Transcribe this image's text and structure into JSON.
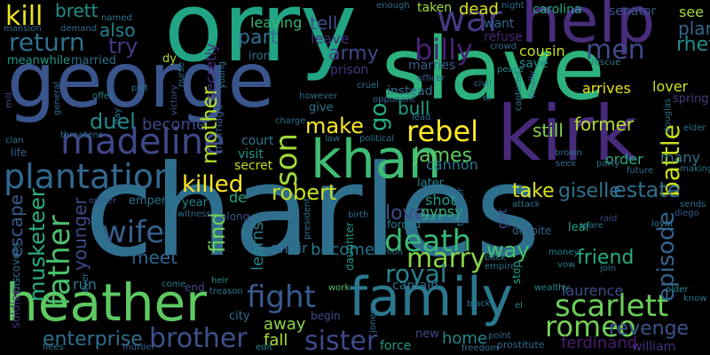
{
  "words": [
    {
      "text": "charles",
      "color": "#2f6f8e"
    },
    {
      "text": "orry",
      "color": "#21a585"
    },
    {
      "text": "george",
      "color": "#3a548c"
    },
    {
      "text": "slave",
      "color": "#2db27d"
    },
    {
      "text": "kirk",
      "color": "#472a7a"
    },
    {
      "text": "help",
      "color": "#472d7b"
    },
    {
      "text": "family",
      "color": "#2a788e"
    },
    {
      "text": "heather",
      "color": "#5ec962"
    },
    {
      "text": "khan",
      "color": "#3fbc73"
    },
    {
      "text": "madeline",
      "color": "#3f4788"
    },
    {
      "text": "plantation",
      "color": "#31688e"
    },
    {
      "text": "war",
      "color": "#443983"
    },
    {
      "text": "kill",
      "color": "#eae51a"
    },
    {
      "text": "return",
      "color": "#2c728e"
    },
    {
      "text": "father",
      "color": "#4ac16d"
    },
    {
      "text": "wife",
      "color": "#34608d"
    },
    {
      "text": "fight",
      "color": "#375a8c"
    },
    {
      "text": "rebel",
      "color": "#fde725"
    },
    {
      "text": "scarlett",
      "color": "#6ccd5a"
    },
    {
      "text": "romeo",
      "color": "#73d056"
    },
    {
      "text": "brother",
      "color": "#3b528b"
    },
    {
      "text": "death",
      "color": "#38b977"
    },
    {
      "text": "billy",
      "color": "#482173"
    },
    {
      "text": "men",
      "color": "#3e4989"
    },
    {
      "text": "sister",
      "color": "#3e4989"
    },
    {
      "text": "battle",
      "color": "#cae11f"
    },
    {
      "text": "son",
      "color": "#a0da39"
    },
    {
      "text": "episode",
      "color": "#33638d"
    },
    {
      "text": "musketeer",
      "color": "#28ae80"
    },
    {
      "text": "marry",
      "color": "#87d549"
    },
    {
      "text": "royal",
      "color": "#25848e"
    },
    {
      "text": "killed",
      "color": "#fde725"
    },
    {
      "text": "robert",
      "color": "#c8e020"
    },
    {
      "text": "make",
      "color": "#fde725"
    },
    {
      "text": "james",
      "color": "#5ec962"
    },
    {
      "text": "mother",
      "color": "#b5de2b"
    },
    {
      "text": "duel",
      "color": "#238a8d"
    },
    {
      "text": "estate",
      "color": "#2e6e8e"
    },
    {
      "text": "giselle",
      "color": "#2c738e"
    },
    {
      "text": "friend",
      "color": "#26ad81"
    },
    {
      "text": "army",
      "color": "#3e4a89"
    },
    {
      "text": "revenge",
      "color": "#39558c"
    },
    {
      "text": "enterprise",
      "color": "#2e6f8e"
    },
    {
      "text": "take",
      "color": "#dce319"
    },
    {
      "text": "rhett",
      "color": "#228d8d"
    },
    {
      "text": "plan",
      "color": "#32658e"
    },
    {
      "text": "love",
      "color": "#3d4d8a"
    },
    {
      "text": "way",
      "color": "#46c06f"
    },
    {
      "text": "find",
      "color": "#73d056"
    },
    {
      "text": "meet",
      "color": "#31678e"
    },
    {
      "text": "part",
      "color": "#2d718e"
    },
    {
      "text": "tell",
      "color": "#3d4e8a"
    },
    {
      "text": "also",
      "color": "#26828e"
    },
    {
      "text": "try",
      "color": "#443983"
    },
    {
      "text": "go",
      "color": "#25ab82"
    },
    {
      "text": "bull",
      "color": "#1fa188"
    },
    {
      "text": "still",
      "color": "#84d44b"
    },
    {
      "text": "former",
      "color": "#b5de2b"
    },
    {
      "text": "brett",
      "color": "#20928c"
    },
    {
      "text": "become",
      "color": "#3e4a89"
    },
    {
      "text": "becomes",
      "color": "#2b758e"
    },
    {
      "text": "younger",
      "color": "#3e4989"
    },
    {
      "text": "escape",
      "color": "#375b8d"
    },
    {
      "text": "leave",
      "color": "#472f7d"
    },
    {
      "text": "dead",
      "color": "#dde318"
    },
    {
      "text": "leaving",
      "color": "#35b779"
    },
    {
      "text": "secretly",
      "color": "#46337f"
    },
    {
      "text": "order",
      "color": "#25ab82"
    },
    {
      "text": "many",
      "color": "#2c728e"
    },
    {
      "text": "away",
      "color": "#8bd646"
    },
    {
      "text": "fall",
      "color": "#addc30"
    },
    {
      "text": "home",
      "color": "#24878e"
    },
    {
      "text": "laurence",
      "color": "#3d4e8a"
    },
    {
      "text": "ferdinand",
      "color": "#481b6d"
    },
    {
      "text": "william",
      "color": "#46307e"
    },
    {
      "text": "cannon",
      "color": "#2a778e"
    },
    {
      "text": "learns",
      "color": "#26828e"
    },
    {
      "text": "affair",
      "color": "#2c718e"
    },
    {
      "text": "gypsy",
      "color": "#32b67a"
    },
    {
      "text": "shot",
      "color": "#1f9e89"
    },
    {
      "text": "secret",
      "color": "#c2df23"
    },
    {
      "text": "captain",
      "color": "#2d708e"
    },
    {
      "text": "court",
      "color": "#2a768e"
    },
    {
      "text": "visit",
      "color": "#1f968b"
    },
    {
      "text": "run",
      "color": "#287c8e"
    },
    {
      "text": "arrives",
      "color": "#e5e419"
    },
    {
      "text": "lover",
      "color": "#d2e21b"
    },
    {
      "text": "see",
      "color": "#a2da37"
    },
    {
      "text": "senator",
      "color": "#3a548c"
    },
    {
      "text": "carolina",
      "color": "#22a884"
    },
    {
      "text": "want",
      "color": "#32658e"
    },
    {
      "text": "refuse",
      "color": "#482878"
    },
    {
      "text": "cousin",
      "color": "#c2df23"
    },
    {
      "text": "save",
      "color": "#23898e"
    },
    {
      "text": "taken",
      "color": "#a0da39"
    },
    {
      "text": "marries",
      "color": "#365c8d"
    },
    {
      "text": "prison",
      "color": "#46337f"
    },
    {
      "text": "instead",
      "color": "#2e6e8e"
    },
    {
      "text": "married",
      "color": "#2e6e8e"
    },
    {
      "text": "meanwhile",
      "color": "#1f9a8a"
    },
    {
      "text": "iron",
      "color": "#2c718e"
    },
    {
      "text": "give",
      "color": "#2b758e"
    },
    {
      "text": "later",
      "color": "#26828e"
    },
    {
      "text": "leaf",
      "color": "#22a785"
    },
    {
      "text": "spring",
      "color": "#433e85"
    },
    {
      "text": "soldier",
      "color": "#472d7b"
    },
    {
      "text": "discovers",
      "color": "#2d718e"
    },
    {
      "text": "emperor",
      "color": "#2c728e"
    },
    {
      "text": "year",
      "color": "#24868e"
    },
    {
      "text": "de",
      "color": "#22a785"
    },
    {
      "text": "along",
      "color": "#3b518b"
    },
    {
      "text": "end",
      "color": "#3e4c8a"
    },
    {
      "text": "city",
      "color": "#2d708e"
    },
    {
      "text": "begin",
      "color": "#3e4a89"
    },
    {
      "text": "force",
      "color": "#1f998a"
    },
    {
      "text": "new",
      "color": "#3e4a89"
    },
    {
      "text": "daughter",
      "color": "#1f9a8a"
    },
    {
      "text": "stop",
      "color": "#1fa187"
    },
    {
      "text": "get",
      "color": "#3b528b"
    },
    {
      "text": "forced",
      "color": "#26818e"
    },
    {
      "text": "despite",
      "color": "#33638d"
    },
    {
      "text": "attack",
      "color": "#2c738e"
    },
    {
      "text": "life",
      "color": "#355f8d"
    },
    {
      "text": "clan",
      "color": "#2b748e"
    },
    {
      "text": "mill",
      "color": "#3d4e8a"
    },
    {
      "text": "offer",
      "color": "#26828e"
    },
    {
      "text": "plot",
      "color": "#2d718e"
    },
    {
      "text": "witness",
      "color": "#2e6f8e"
    },
    {
      "text": "heir",
      "color": "#238a8d"
    },
    {
      "text": "treason",
      "color": "#2a788e"
    },
    {
      "text": "work",
      "color": "#50c46a"
    },
    {
      "text": "wealthy",
      "color": "#23898e"
    },
    {
      "text": "know",
      "color": "#2b748e"
    },
    {
      "text": "older",
      "color": "#23898e"
    },
    {
      "text": "freedom",
      "color": "#2d708e"
    },
    {
      "text": "prostitute",
      "color": "#31678e"
    },
    {
      "text": "murder",
      "color": "#365d8d"
    },
    {
      "text": "flees",
      "color": "#2c728e"
    },
    {
      "text": "edit",
      "color": "#25858e"
    },
    {
      "text": "night",
      "color": "#2e6e8e"
    },
    {
      "text": "enough",
      "color": "#2e6f8e"
    },
    {
      "text": "named",
      "color": "#2b758e"
    },
    {
      "text": "crowd",
      "color": "#2d708e"
    },
    {
      "text": "mansion",
      "color": "#2f6b8e"
    },
    {
      "text": "demand",
      "color": "#31678e"
    },
    {
      "text": "dy",
      "color": "#a8db34"
    },
    {
      "text": "nurse",
      "color": "#2b758e"
    },
    {
      "text": "marriage",
      "color": "#365c8d"
    },
    {
      "text": "victory",
      "color": "#3b518b"
    },
    {
      "text": "general",
      "color": "#306a8e"
    },
    {
      "text": "threatens",
      "color": "#2d708e"
    },
    {
      "text": "day",
      "color": "#2a778e"
    },
    {
      "text": "ever",
      "color": "#2e6e8e"
    },
    {
      "text": "come",
      "color": "#2a788e"
    },
    {
      "text": "owner",
      "color": "#3b528b"
    },
    {
      "text": "charge",
      "color": "#2f6c8e"
    },
    {
      "text": "law",
      "color": "#2c718e"
    },
    {
      "text": "however",
      "color": "#2e6e8e"
    },
    {
      "text": "opponent",
      "color": "#2f6b8e"
    },
    {
      "text": "cruel",
      "color": "#2a768e"
    },
    {
      "text": "officer",
      "color": "#365c8d"
    },
    {
      "text": "civil",
      "color": "#2c728e"
    },
    {
      "text": "el",
      "color": "#25858e"
    },
    {
      "text": "lead",
      "color": "#2d718e"
    },
    {
      "text": "political",
      "color": "#2b748e"
    },
    {
      "text": "peace",
      "color": "#23898e"
    },
    {
      "text": "captured",
      "color": "#2a768e"
    },
    {
      "text": "finally",
      "color": "#2e6e8e"
    },
    {
      "text": "rescue",
      "color": "#2b748e"
    },
    {
      "text": "elder",
      "color": "#2e6f8e"
    },
    {
      "text": "douglas",
      "color": "#2e6e8e"
    },
    {
      "text": "making",
      "color": "#2c738e"
    },
    {
      "text": "future",
      "color": "#2e6f8e"
    },
    {
      "text": "party",
      "color": "#2d708e"
    },
    {
      "text": "brown",
      "color": "#2f6b8e"
    },
    {
      "text": "seek",
      "color": "#31688e"
    },
    {
      "text": "vow",
      "color": "#2a778e"
    },
    {
      "text": "money",
      "color": "#25858e"
    },
    {
      "text": "join",
      "color": "#2d708e"
    },
    {
      "text": "spare",
      "color": "#2c738e"
    },
    {
      "text": "raid",
      "color": "#3e4a89"
    },
    {
      "text": "loyal",
      "color": "#2a788e"
    },
    {
      "text": "sends",
      "color": "#2d718e"
    },
    {
      "text": "diego",
      "color": "#365c8d"
    },
    {
      "text": "back",
      "color": "#2b748e"
    },
    {
      "text": "empire",
      "color": "#2c728e"
    },
    {
      "text": "union",
      "color": "#2c718e"
    },
    {
      "text": "birth",
      "color": "#2e6e8e"
    },
    {
      "text": "president",
      "color": "#2b748e"
    },
    {
      "text": "jones",
      "color": "#2c718e"
    },
    {
      "text": "black",
      "color": "#2c738e"
    },
    {
      "text": "point",
      "color": "#31688e"
    },
    {
      "text": "together",
      "color": "#2e6e8e"
    },
    {
      "text": "although",
      "color": "#2c718e"
    },
    {
      "text": "young",
      "color": "#2b748e"
    },
    {
      "text": "el",
      "color": "#25858e"
    }
  ]
}
